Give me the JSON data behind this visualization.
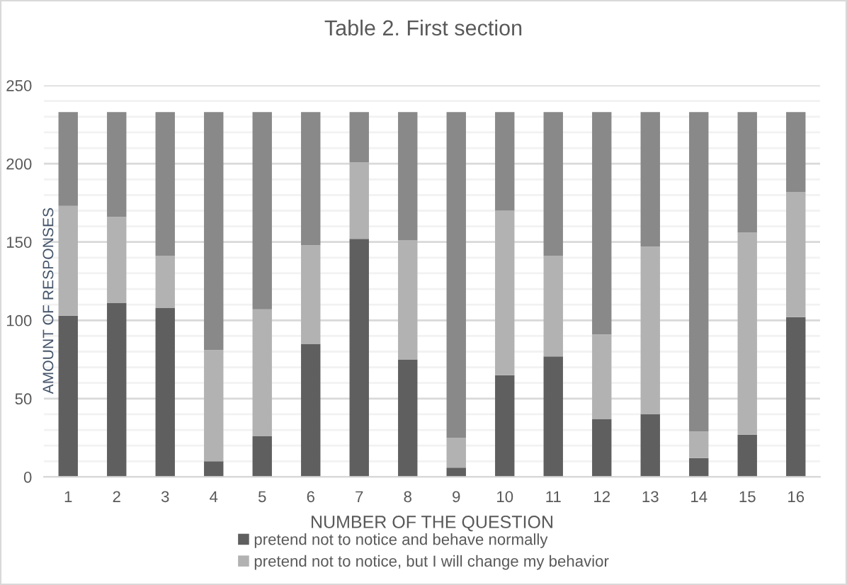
{
  "chart_data": {
    "type": "bar",
    "title": "Table 2. First section",
    "xlabel": "NUMBER OF THE QUESTION",
    "ylabel": "AMOUNT OF RESPONSES",
    "categories": [
      "1",
      "2",
      "3",
      "4",
      "5",
      "6",
      "7",
      "8",
      "9",
      "10",
      "11",
      "12",
      "13",
      "14",
      "15",
      "16"
    ],
    "series": [
      {
        "name": "pretend not to notice and behave normally",
        "color": "#5f5f5f",
        "values": [
          103,
          111,
          108,
          10,
          26,
          85,
          152,
          75,
          6,
          65,
          77,
          37,
          40,
          12,
          27,
          102
        ]
      },
      {
        "name": "pretend not to notice, but I will change my behavior",
        "color": "#b2b2b2",
        "values": [
          70,
          55,
          33,
          71,
          81,
          63,
          49,
          76,
          19,
          105,
          64,
          54,
          107,
          17,
          129,
          80
        ]
      },
      {
        "color": "#898989",
        "values": [
          60,
          67,
          92,
          152,
          126,
          85,
          32,
          82,
          208,
          63,
          92,
          142,
          86,
          204,
          77,
          51
        ]
      }
    ],
    "stacked": true,
    "ylim": [
      0,
      250
    ],
    "yticks": [
      0,
      {
        "value": 10,
        "label": null
      },
      {
        "value": 20,
        "label": null
      },
      {
        "value": 30,
        "label": null
      },
      {
        "value": 40,
        "label": null
      },
      50,
      {
        "value": 60,
        "label": null
      },
      {
        "value": 70,
        "label": null
      },
      {
        "value": 80,
        "label": null
      },
      {
        "value": 90,
        "label": null
      },
      100,
      {
        "value": 110,
        "label": null
      },
      {
        "value": 120,
        "label": null
      },
      {
        "value": 130,
        "label": null
      },
      {
        "value": 140,
        "label": null
      },
      150,
      {
        "value": 160,
        "label": null
      },
      {
        "value": 170,
        "label": null
      },
      {
        "value": 180,
        "label": null
      },
      {
        "value": 190,
        "label": null
      },
      200,
      {
        "value": 210,
        "label": null
      },
      {
        "value": 220,
        "label": null
      },
      {
        "value": 230,
        "label": null
      },
      {
        "value": 240,
        "label": null
      },
      250
    ],
    "grid": "y",
    "legend": "bottom"
  }
}
